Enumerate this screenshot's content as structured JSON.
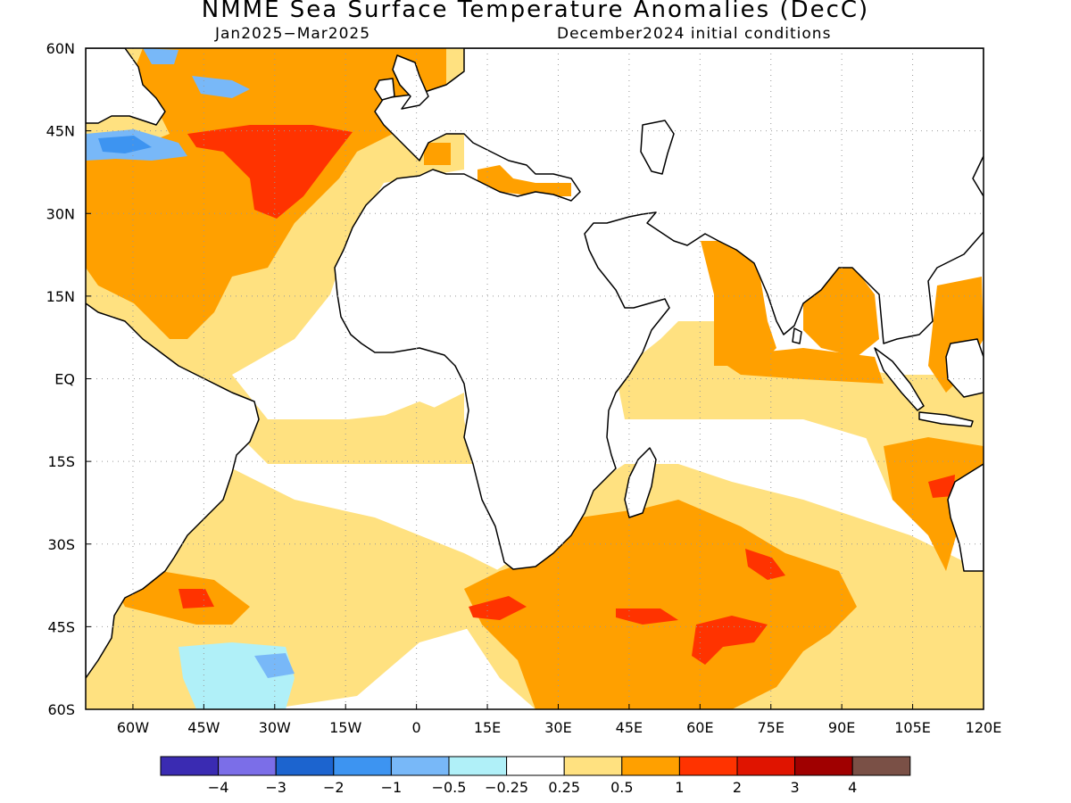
{
  "title": "NMME Sea Surface Temperature Anomalies (DecC)",
  "subtitle_left": "Jan2025−Mar2025",
  "subtitle_right": "December2024 initial conditions",
  "map": {
    "lon_range": [
      -70,
      120
    ],
    "lat_range": [
      -60,
      60
    ],
    "x_ticks": [
      {
        "lon": -60,
        "label": "60W"
      },
      {
        "lon": -45,
        "label": "45W"
      },
      {
        "lon": -30,
        "label": "30W"
      },
      {
        "lon": -15,
        "label": "15W"
      },
      {
        "lon": 0,
        "label": "0"
      },
      {
        "lon": 15,
        "label": "15E"
      },
      {
        "lon": 30,
        "label": "30E"
      },
      {
        "lon": 45,
        "label": "45E"
      },
      {
        "lon": 60,
        "label": "60E"
      },
      {
        "lon": 75,
        "label": "75E"
      },
      {
        "lon": 90,
        "label": "90E"
      },
      {
        "lon": 105,
        "label": "105E"
      },
      {
        "lon": 120,
        "label": "120E"
      }
    ],
    "y_ticks": [
      {
        "lat": 60,
        "label": "60N"
      },
      {
        "lat": 45,
        "label": "45N"
      },
      {
        "lat": 30,
        "label": "30N"
      },
      {
        "lat": 15,
        "label": "15N"
      },
      {
        "lat": 0,
        "label": "EQ"
      },
      {
        "lat": -15,
        "label": "15S"
      },
      {
        "lat": -30,
        "label": "30S"
      },
      {
        "lat": -45,
        "label": "45S"
      },
      {
        "lat": -60,
        "label": "60S"
      }
    ],
    "gridlines": "dotted"
  },
  "colorbar": {
    "colors": [
      "#3a2bb2",
      "#7b6ee8",
      "#1c64cf",
      "#3d94f1",
      "#78b8f8",
      "#b0f0f8",
      "#ffffff",
      "#ffe180",
      "#ffa000",
      "#ff3300",
      "#e01400",
      "#a00000",
      "#7a5046"
    ],
    "labels": [
      "−4",
      "−3",
      "−2",
      "−1",
      "−0.5",
      "−0.25",
      "0.25",
      "0.5",
      "1",
      "2",
      "3",
      "4"
    ]
  },
  "colors": {
    "land": "#ffffff",
    "neutral": "#ffffff",
    "weak_warm": "#ffe180",
    "warm": "#ffa000",
    "strong_warm": "#ff3300",
    "weak_cool": "#b0f0f8",
    "cool": "#78b8f8",
    "strong_cool": "#3d94f1",
    "coastline": "#000000"
  }
}
